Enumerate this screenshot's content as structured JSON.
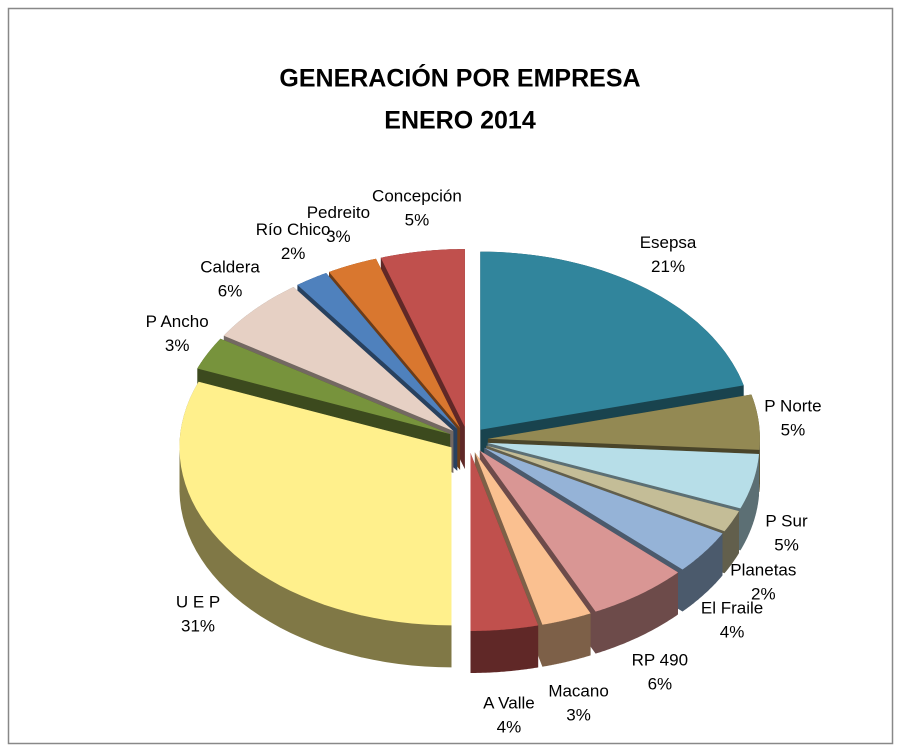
{
  "chart_data": {
    "type": "pie",
    "title": "GENERACIÓN  POR  EMPRESA",
    "subtitle": "ENERO  2014",
    "categories": [
      "Esepsa",
      "P Norte",
      "P Sur",
      "Planetas",
      "El Fraile",
      "RP 490",
      "Macano",
      "A Valle",
      "U E P",
      "P Ancho",
      "Caldera",
      "Río Chico",
      "Pedreito",
      "Concepción"
    ],
    "values": [
      21,
      5,
      5,
      2,
      4,
      6,
      3,
      4,
      31,
      3,
      6,
      2,
      3,
      5
    ],
    "value_labels": [
      "21%",
      "5%",
      "5%",
      "2%",
      "4%",
      "6%",
      "3%",
      "4%",
      "31%",
      "3%",
      "6%",
      "2%",
      "3%",
      "5%"
    ],
    "colors": [
      "#31859c",
      "#938953",
      "#b7dee8",
      "#c4bd97",
      "#95b3d7",
      "#d99694",
      "#fac090",
      "#c0504d",
      "#fff08c",
      "#77933c",
      "#e6d0c4",
      "#4f81bd",
      "#d9772f",
      "#c0504d"
    ]
  }
}
